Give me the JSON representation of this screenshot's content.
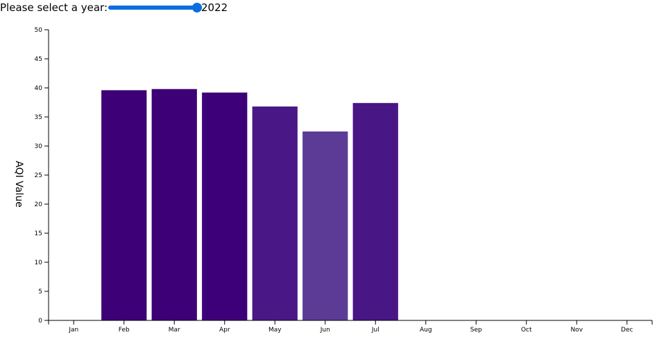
{
  "controls": {
    "year_label": "Please select a year:",
    "year_value": "2022",
    "slider_fraction": 1.0,
    "slider_color": "#0b6ee0"
  },
  "chart_data": {
    "type": "bar",
    "title": "",
    "xlabel": "",
    "ylabel": "AQI Value",
    "ylim": [
      0,
      50
    ],
    "yticks": [
      0,
      5,
      10,
      15,
      20,
      25,
      30,
      35,
      40,
      45,
      50
    ],
    "grid": false,
    "categories": [
      "Jan",
      "Feb",
      "Mar",
      "Apr",
      "May",
      "Jun",
      "Jul",
      "Aug",
      "Sep",
      "Oct",
      "Nov",
      "Dec"
    ],
    "values": [
      null,
      39.6,
      39.8,
      39.2,
      36.8,
      32.5,
      37.4,
      null,
      null,
      null,
      null,
      null
    ],
    "colors": [
      "",
      "#3d0076",
      "#3d0076",
      "#3e0078",
      "#4a1787",
      "#5c3b97",
      "#491685",
      "",
      "",
      "",
      "",
      ""
    ]
  }
}
